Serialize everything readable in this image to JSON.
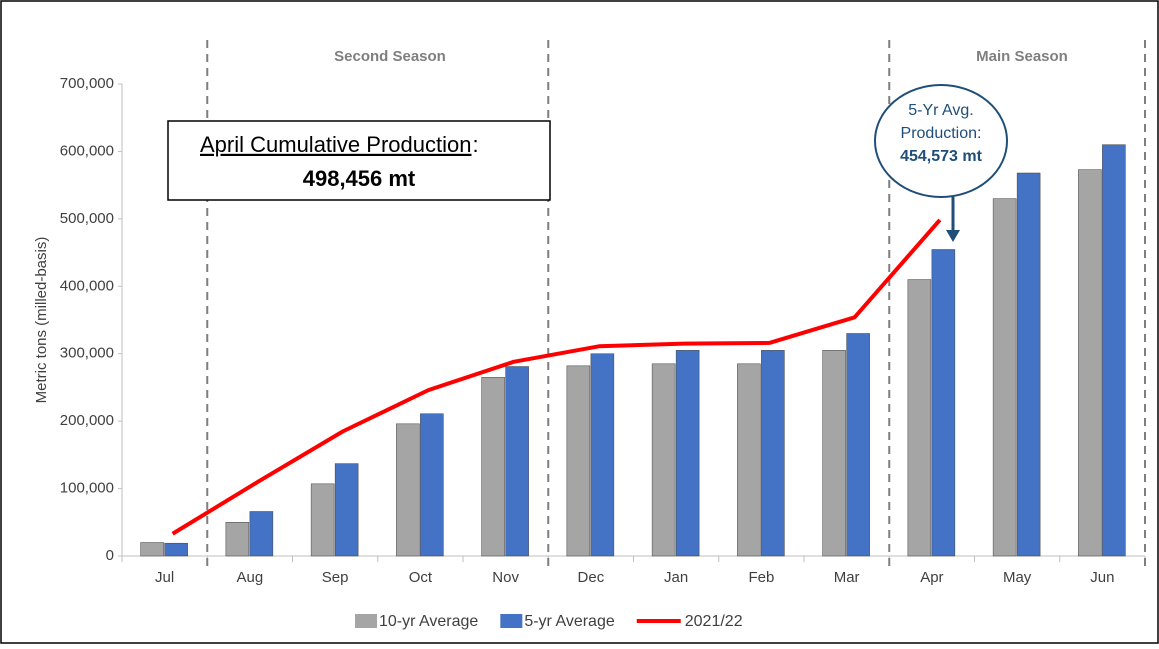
{
  "chart_data": {
    "type": "bar",
    "categories": [
      "Jul",
      "Aug",
      "Sep",
      "Oct",
      "Nov",
      "Dec",
      "Jan",
      "Feb",
      "Mar",
      "Apr",
      "May",
      "Jun"
    ],
    "series": [
      {
        "name": "10-yr Average",
        "color": "#a5a5a5",
        "values": [
          20000,
          50000,
          107000,
          196000,
          265000,
          282000,
          285000,
          285000,
          305000,
          410000,
          530000,
          573000
        ]
      },
      {
        "name": "5-yr Average",
        "color": "#4472c4",
        "values": [
          19000,
          66000,
          137000,
          211000,
          281000,
          300000,
          305000,
          305000,
          330000,
          454573,
          568000,
          610000
        ]
      },
      {
        "name": "2021/22",
        "color": "#ff0000",
        "type": "line",
        "values": [
          33000,
          110000,
          185000,
          246000,
          288000,
          311000,
          315000,
          316000,
          354000,
          498456,
          null,
          null
        ]
      }
    ],
    "ylabel": "Metric tons (milled-basis)",
    "ylim": [
      0,
      700000
    ],
    "yticks": [
      0,
      {
        "value": 100000,
        "label": "100,000"
      },
      {
        "value": 200000,
        "label": "200,000"
      },
      {
        "value": 300000,
        "label": "300,000"
      },
      {
        "value": 400000,
        "label": "400,000"
      },
      {
        "value": 500000,
        "label": "500,000"
      },
      {
        "value": 600000,
        "label": "600,000"
      },
      {
        "value": 700000,
        "label": "700,000"
      }
    ],
    "annotations": {
      "second_season": "Second Season",
      "main_season": "Main Season",
      "box_title": "April Cumulative Production",
      "box_colon": ":",
      "box_value": "498,456 mt",
      "callout_1": "5-Yr Avg.",
      "callout_2": "Production:",
      "callout_3": "454,573 mt"
    }
  }
}
